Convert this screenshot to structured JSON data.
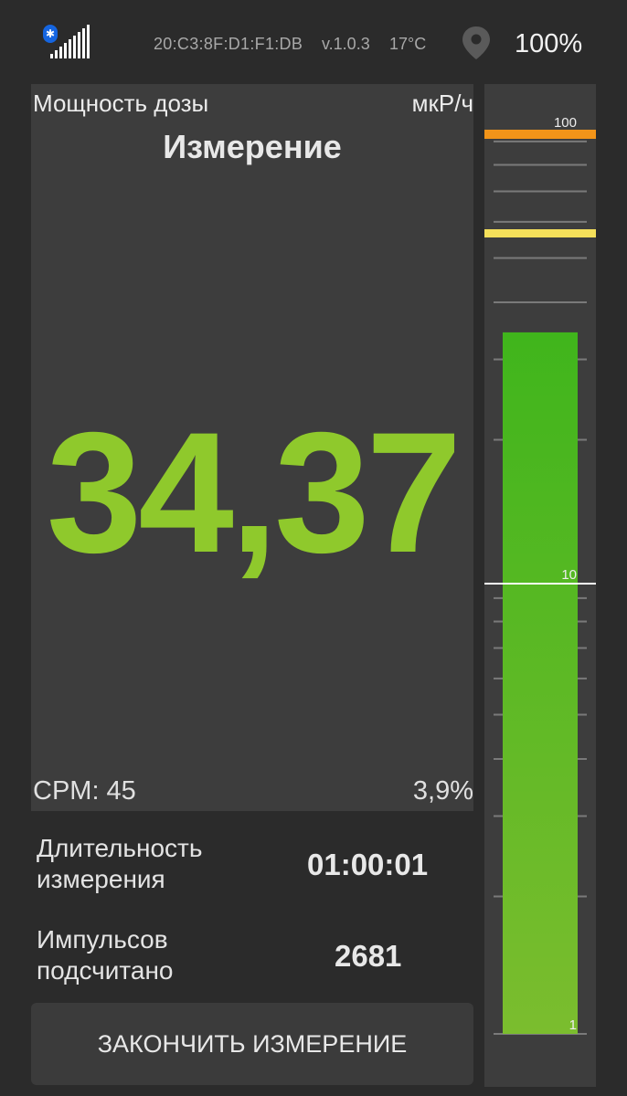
{
  "status_bar": {
    "bluetooth_icon": "bluetooth-icon",
    "bluetooth_glyph": "✱",
    "signal_icon": "signal-bars-icon",
    "mac_address": "20:C3:8F:D1:F1:DB",
    "version": "v.1.0.3",
    "temperature": "17°C",
    "location_icon": "location-pin-icon",
    "battery": "100%"
  },
  "dose": {
    "label": "Мощность дозы",
    "unit": "мкР/ч",
    "mode": "Измерение",
    "value": "34,37",
    "cpm": "CPM: 45",
    "error": "3,9%"
  },
  "info": {
    "duration_label": "Длительность измерения",
    "duration_value": "01:00:01",
    "pulses_label": "Импульсов подсчитано",
    "pulses_value": "2681"
  },
  "actions": {
    "stop_label": "ЗАКОНЧИТЬ ИЗМЕРЕНИЕ"
  },
  "scale": {
    "type": "log",
    "labels": [
      "100",
      "10",
      "1"
    ],
    "level": 34.37,
    "colors": {
      "alarm": "#f29419",
      "warning": "#f5e05a",
      "bar_top": "#40b51c",
      "bar_bottom": "#7bbd2e",
      "marker": "#ffffff"
    }
  },
  "colors": {
    "background": "#2b2b2b",
    "panel": "#3d3d3d",
    "dose_value": "#8fc92c"
  }
}
